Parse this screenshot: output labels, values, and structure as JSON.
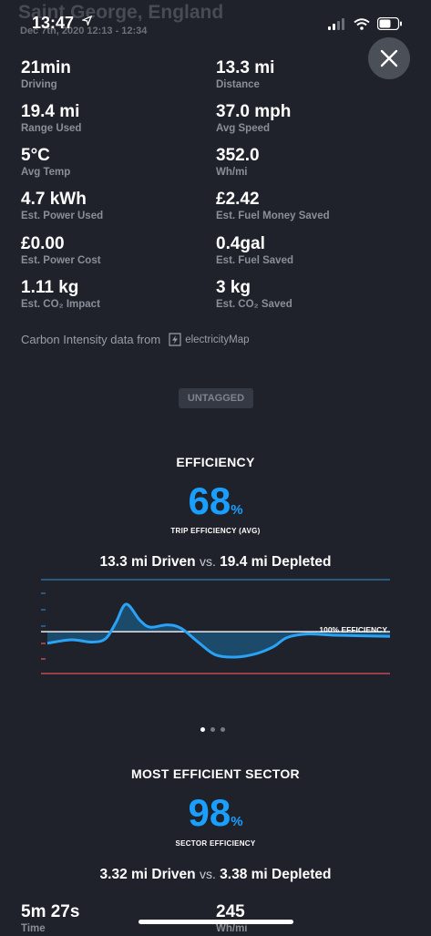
{
  "header": {
    "title": "Saint George, England",
    "subtitle": "Dec 7th, 2020 12:13 - 12:34",
    "time": "13:47"
  },
  "stats": [
    {
      "value": "21min",
      "label": "Driving"
    },
    {
      "value": "13.3 mi",
      "label": "Distance"
    },
    {
      "value": "19.4 mi",
      "label": "Range Used"
    },
    {
      "value": "37.0 mph",
      "label": "Avg Speed"
    },
    {
      "value": "5°C",
      "label": "Avg Temp"
    },
    {
      "value": "352.0",
      "label": "Wh/mi"
    },
    {
      "value": "4.7 kWh",
      "label": "Est. Power Used"
    },
    {
      "value": "£2.42",
      "label": "Est. Fuel Money Saved"
    },
    {
      "value": "£0.00",
      "label": "Est. Power Cost"
    },
    {
      "value": "0.4gal",
      "label": "Est. Fuel Saved"
    },
    {
      "value": "1.11 kg",
      "label": "Est. CO₂ Impact"
    },
    {
      "value": "3 kg",
      "label": "Est. CO₂ Saved"
    }
  ],
  "carbon": {
    "text": "Carbon Intensity data from",
    "source": "electricityMap"
  },
  "tag": "UNTAGGED",
  "efficiency": {
    "title": "EFFICIENCY",
    "value": "68",
    "unit": "%",
    "caption": "TRIP EFFICIENCY (AVG)",
    "driven": "13.3 mi Driven",
    "vs": "vs.",
    "depleted": "19.4 mi Depleted",
    "chart_label": "100% EFFICIENCY"
  },
  "chart_data": {
    "type": "area",
    "reference_label": "100% EFFICIENCY",
    "reference_value": 100,
    "points": [
      [
        0,
        90
      ],
      [
        7,
        93
      ],
      [
        13,
        91
      ],
      [
        17,
        94
      ],
      [
        20,
        108
      ],
      [
        23,
        124
      ],
      [
        27,
        110
      ],
      [
        30,
        104
      ],
      [
        35,
        106
      ],
      [
        39,
        103
      ],
      [
        44,
        91
      ],
      [
        49,
        80
      ],
      [
        55,
        78
      ],
      [
        61,
        81
      ],
      [
        66,
        87
      ],
      [
        70,
        95
      ],
      [
        76,
        98
      ],
      [
        84,
        97
      ],
      [
        100,
        96
      ]
    ],
    "ylim": [
      55,
      150
    ]
  },
  "sector": {
    "title": "MOST EFFICIENT SECTOR",
    "value": "98",
    "unit": "%",
    "caption": "SECTOR EFFICIENCY",
    "driven": "3.32 mi Driven",
    "vs": "vs.",
    "depleted": "3.38 mi Depleted",
    "time_value": "5m 27s",
    "time_label": "Time",
    "whmi_value": "245",
    "whmi_label": "Wh/mi"
  },
  "colors": {
    "background": "#1f222b",
    "accent": "#1a9fff",
    "line": "#2aa2f5",
    "fill": "#1b4a6b",
    "ref_line": "#e9ebef",
    "top_line": "#2f6d9a",
    "bottom_line": "#c04a52"
  },
  "icons": {
    "close": "close-icon",
    "location": "location-arrow-icon",
    "signal": "signal-icon",
    "wifi": "wifi-icon",
    "battery": "battery-icon",
    "electricitymap": "electricitymap-logo-icon"
  }
}
